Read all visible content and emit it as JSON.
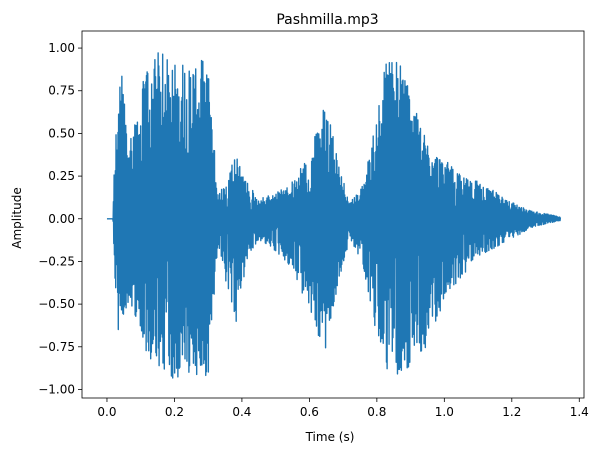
{
  "chart_data": {
    "type": "line",
    "title": "Pashmilla.mp3",
    "xlabel": "Time (s)",
    "ylabel": "Amplitude",
    "xlim": [
      -0.074,
      1.414
    ],
    "ylim": [
      -1.05,
      1.1
    ],
    "x_ticks": [
      0.0,
      0.2,
      0.4,
      0.6,
      0.8,
      1.0,
      1.2,
      1.4
    ],
    "x_tick_labels": [
      "0.0",
      "0.2",
      "0.4",
      "0.6",
      "0.8",
      "1.0",
      "1.2",
      "1.4"
    ],
    "y_ticks": [
      1.0,
      0.75,
      0.5,
      0.25,
      0.0,
      -0.25,
      -0.5,
      -0.75,
      -1.0
    ],
    "y_tick_labels": [
      "1.00",
      "0.75",
      "0.50",
      "0.25",
      "0.00",
      "−0.25",
      "−0.50",
      "−0.75",
      "−1.00"
    ],
    "grid": false,
    "series": [
      {
        "color": "#1f77b4",
        "duration": 1.344,
        "envelope": [
          {
            "t": 0.0,
            "pos": 0.0,
            "neg": 0.0
          },
          {
            "t": 0.018,
            "pos": 0.0,
            "neg": 0.0
          },
          {
            "t": 0.022,
            "pos": 0.35,
            "neg": -0.4
          },
          {
            "t": 0.03,
            "pos": 0.6,
            "neg": -0.72
          },
          {
            "t": 0.045,
            "pos": 0.93,
            "neg": -0.6
          },
          {
            "t": 0.06,
            "pos": 0.45,
            "neg": -0.5
          },
          {
            "t": 0.08,
            "pos": 0.55,
            "neg": -0.55
          },
          {
            "t": 0.1,
            "pos": 0.75,
            "neg": -0.65
          },
          {
            "t": 0.12,
            "pos": 0.9,
            "neg": -0.82
          },
          {
            "t": 0.15,
            "pos": 0.98,
            "neg": -0.92
          },
          {
            "t": 0.2,
            "pos": 0.95,
            "neg": -0.95
          },
          {
            "t": 0.25,
            "pos": 0.9,
            "neg": -0.9
          },
          {
            "t": 0.3,
            "pos": 0.95,
            "neg": -0.94
          },
          {
            "t": 0.31,
            "pos": 0.6,
            "neg": -0.7
          },
          {
            "t": 0.33,
            "pos": 0.15,
            "neg": -0.15
          },
          {
            "t": 0.36,
            "pos": 0.25,
            "neg": -0.45
          },
          {
            "t": 0.38,
            "pos": 0.4,
            "neg": -0.7
          },
          {
            "t": 0.4,
            "pos": 0.28,
            "neg": -0.4
          },
          {
            "t": 0.42,
            "pos": 0.2,
            "neg": -0.22
          },
          {
            "t": 0.45,
            "pos": 0.12,
            "neg": -0.12
          },
          {
            "t": 0.5,
            "pos": 0.15,
            "neg": -0.2
          },
          {
            "t": 0.55,
            "pos": 0.22,
            "neg": -0.3
          },
          {
            "t": 0.6,
            "pos": 0.38,
            "neg": -0.55
          },
          {
            "t": 0.65,
            "pos": 0.7,
            "neg": -0.8
          },
          {
            "t": 0.69,
            "pos": 0.3,
            "neg": -0.35
          },
          {
            "t": 0.72,
            "pos": 0.1,
            "neg": -0.12
          },
          {
            "t": 0.76,
            "pos": 0.2,
            "neg": -0.28
          },
          {
            "t": 0.8,
            "pos": 0.6,
            "neg": -0.7
          },
          {
            "t": 0.83,
            "pos": 0.98,
            "neg": -0.9
          },
          {
            "t": 0.88,
            "pos": 0.9,
            "neg": -0.95
          },
          {
            "t": 0.92,
            "pos": 0.6,
            "neg": -0.85
          },
          {
            "t": 0.96,
            "pos": 0.4,
            "neg": -0.75
          },
          {
            "t": 1.0,
            "pos": 0.35,
            "neg": -0.45
          },
          {
            "t": 1.05,
            "pos": 0.25,
            "neg": -0.35
          },
          {
            "t": 1.1,
            "pos": 0.22,
            "neg": -0.22
          },
          {
            "t": 1.2,
            "pos": 0.1,
            "neg": -0.12
          },
          {
            "t": 1.25,
            "pos": 0.05,
            "neg": -0.06
          },
          {
            "t": 1.3,
            "pos": 0.03,
            "neg": -0.03
          },
          {
            "t": 1.344,
            "pos": 0.01,
            "neg": -0.01
          }
        ]
      }
    ]
  }
}
